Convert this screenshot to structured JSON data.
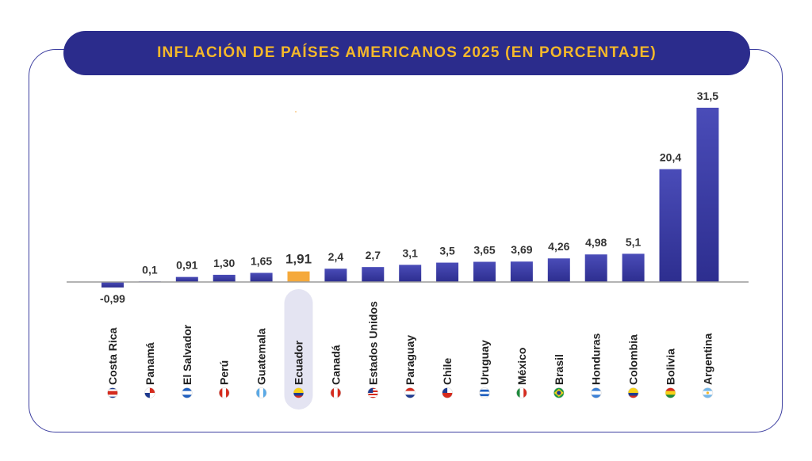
{
  "colors": {
    "bar": "#2d2e8f",
    "bar_light": "#4a4cb8",
    "highlight": "#f5a93b",
    "title_bg": "#2b2c8c",
    "title_text": "#f5b82a",
    "highlight_bg": "#e4e4f2"
  },
  "chart_data": {
    "type": "bar",
    "title": "INFLACIÓN DE PAÍSES AMERICANOS 2025 (EN PORCENTAJE)",
    "xlabel": "",
    "ylabel": "",
    "ylim": [
      -0.99,
      31.5
    ],
    "categories": [
      "Costa Rica",
      "Panamá",
      "El Salvador",
      "Perú",
      "Guatemala",
      "Ecuador",
      "Canadá",
      "Estados Unidos",
      "Paraguay",
      "Chile",
      "Uruguay",
      "México",
      "Brasil",
      "Honduras",
      "Colombia",
      "Bolivia",
      "Argentina"
    ],
    "values": [
      -0.99,
      0.1,
      0.91,
      1.3,
      1.65,
      1.91,
      2.4,
      2.7,
      3.1,
      3.5,
      3.65,
      3.69,
      4.26,
      4.98,
      5.1,
      20.4,
      31.5
    ],
    "labels": [
      "-0,99",
      "0,1",
      "0,91",
      "1,30",
      "1,65",
      "1,91",
      "2,4",
      "2,7",
      "3,1",
      "3,5",
      "3,65",
      "3,69",
      "4,26",
      "4,98",
      "5,1",
      "20,4",
      "31,5"
    ],
    "highlight_index": 5,
    "flags": [
      "flag-costa-rica-icon",
      "flag-panama-icon",
      "flag-el-salvador-icon",
      "flag-peru-icon",
      "flag-guatemala-icon",
      "flag-ecuador-icon",
      "flag-canada-icon",
      "flag-usa-icon",
      "flag-paraguay-icon",
      "flag-chile-icon",
      "flag-uruguay-icon",
      "flag-mexico-icon",
      "flag-brazil-icon",
      "flag-honduras-icon",
      "flag-colombia-icon",
      "flag-bolivia-icon",
      "flag-argentina-icon"
    ]
  }
}
